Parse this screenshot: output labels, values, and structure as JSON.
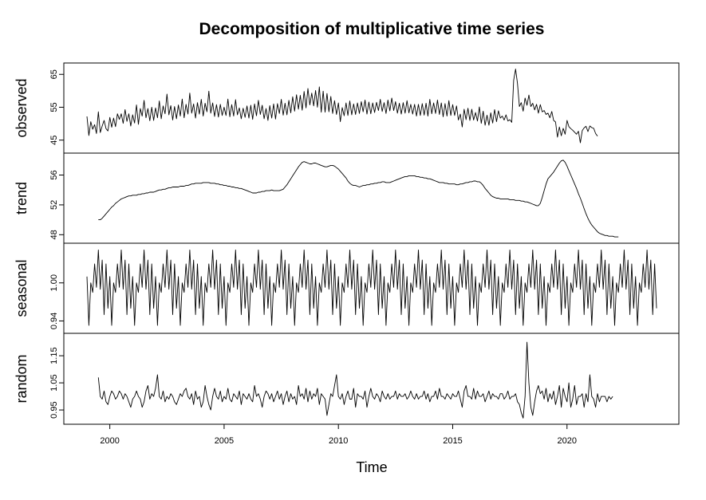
{
  "chart_data": {
    "type": "line",
    "title": "Decomposition of multiplicative time series",
    "xlabel": "Time",
    "x_range": [
      1999.0,
      2023.917
    ],
    "x_ticks": [
      2000,
      2005,
      2010,
      2015,
      2020
    ],
    "frequency": 12,
    "panels": [
      {
        "name": "observed",
        "ylabel": "observed",
        "ylim": [
          42.5,
          67.0
        ],
        "y_ticks": [
          45,
          55,
          65
        ],
        "start": 1999.0,
        "values": [
          52.2,
          46.4,
          50.6,
          48.3,
          49.7,
          47.0,
          53.6,
          47.3,
          49.3,
          51.0,
          48.5,
          47.8,
          51.9,
          48.9,
          51.7,
          49.1,
          53.0,
          51.3,
          53.0,
          50.1,
          54.3,
          50.7,
          53.0,
          49.3,
          52.7,
          50.2,
          55.7,
          49.8,
          54.6,
          52.3,
          57.1,
          51.8,
          54.6,
          50.9,
          55.0,
          51.0,
          54.8,
          51.8,
          56.9,
          51.5,
          55.4,
          53.0,
          59.0,
          52.7,
          55.5,
          51.1,
          55.2,
          51.5,
          55.7,
          52.3,
          57.5,
          51.8,
          55.9,
          52.9,
          59.3,
          53.2,
          56.0,
          51.7,
          56.4,
          52.9,
          57.4,
          52.3,
          56.2,
          53.6,
          59.9,
          53.2,
          56.3,
          52.2,
          55.8,
          52.0,
          55.9,
          52.5,
          55.0,
          52.5,
          57.5,
          52.1,
          55.8,
          52.3,
          57.3,
          52.7,
          54.8,
          51.5,
          54.7,
          51.9,
          55.4,
          51.7,
          55.6,
          51.3,
          56.0,
          52.4,
          57.1,
          52.8,
          55.6,
          51.5,
          54.6,
          51.0,
          55.5,
          51.7,
          56.0,
          51.4,
          56.1,
          53.1,
          57.4,
          52.6,
          56.2,
          52.7,
          57.1,
          53.3,
          58.2,
          53.8,
          58.8,
          54.4,
          58.6,
          54.1,
          59.8,
          54.8,
          60.7,
          55.7,
          59.3,
          55.4,
          60.1,
          55.0,
          61.2,
          53.5,
          59.9,
          53.5,
          59.2,
          53.6,
          58.3,
          53.1,
          57.0,
          52.8,
          56.3,
          50.6,
          54.9,
          52.4,
          56.3,
          52.5,
          56.9,
          52.7,
          56.0,
          52.8,
          56.3,
          53.1,
          56.7,
          53.6,
          57.2,
          52.9,
          56.6,
          53.0,
          56.3,
          53.4,
          56.5,
          54.0,
          57.4,
          53.7,
          56.4,
          53.1,
          57.2,
          53.9,
          57.8,
          54.0,
          56.7,
          53.2,
          56.2,
          52.9,
          56.4,
          53.2,
          57.0,
          53.3,
          55.9,
          52.9,
          55.9,
          52.3,
          55.9,
          52.5,
          56.1,
          52.6,
          56.2,
          52.3,
          57.4,
          53.0,
          56.3,
          53.1,
          57.2,
          52.8,
          56.3,
          52.1,
          56.1,
          52.3,
          57.0,
          52.5,
          55.8,
          52.5,
          55.4,
          51.1,
          52.9,
          49.0,
          54.4,
          51.2,
          54.7,
          51.0,
          54.4,
          51.1,
          53.4,
          50.8,
          55.1,
          50.1,
          53.8,
          49.5,
          52.6,
          49.5,
          53.3,
          50.2,
          54.3,
          50.6,
          53.9,
          51.7,
          52.3,
          51.1,
          52.7,
          50.8,
          51.2,
          50.4,
          63.2,
          66.6,
          62.2,
          55.2,
          56.4,
          53.8,
          57.8,
          55.6,
          58.7,
          55.2,
          56.2,
          54.2,
          55.9,
          53.2,
          55.8,
          53.6,
          54.0,
          52.8,
          53.2,
          51.8,
          53.7,
          51.0,
          50.5,
          45.9,
          49.0,
          46.3,
          48.6,
          46.8,
          51.0,
          49.1,
          48.5,
          48.0,
          47.4,
          46.8,
          47.7,
          44.2,
          47.9,
          48.7,
          49.2,
          47.6,
          49.3,
          48.8,
          48.6,
          47.0,
          46.2
        ]
      },
      {
        "name": "trend",
        "ylabel": "trend",
        "ylim": [
          47.5,
          58.3
        ],
        "y_ticks": [
          48,
          52,
          56
        ],
        "start": 1999.5,
        "values": [
          50.0,
          50.0,
          50.2,
          50.5,
          50.8,
          51.1,
          51.4,
          51.7,
          51.9,
          52.2,
          52.4,
          52.6,
          52.8,
          52.9,
          53.0,
          53.1,
          53.2,
          53.2,
          53.3,
          53.3,
          53.3,
          53.4,
          53.4,
          53.5,
          53.5,
          53.6,
          53.6,
          53.7,
          53.7,
          53.7,
          53.8,
          53.9,
          54.0,
          54.0,
          54.1,
          54.1,
          54.2,
          54.3,
          54.3,
          54.4,
          54.4,
          54.4,
          54.4,
          54.5,
          54.5,
          54.5,
          54.6,
          54.6,
          54.7,
          54.8,
          54.8,
          54.9,
          54.9,
          54.9,
          54.9,
          55.0,
          55.0,
          55.0,
          55.0,
          54.9,
          54.9,
          54.9,
          54.8,
          54.8,
          54.7,
          54.7,
          54.6,
          54.6,
          54.5,
          54.5,
          54.4,
          54.4,
          54.3,
          54.3,
          54.2,
          54.2,
          54.1,
          54.0,
          53.9,
          53.8,
          53.7,
          53.6,
          53.6,
          53.6,
          53.7,
          53.7,
          53.8,
          53.8,
          53.9,
          53.9,
          53.9,
          54.0,
          53.9,
          53.9,
          53.9,
          53.9,
          54.0,
          54.1,
          54.4,
          54.7,
          55.1,
          55.5,
          55.9,
          56.3,
          56.7,
          57.1,
          57.4,
          57.7,
          57.8,
          57.7,
          57.6,
          57.5,
          57.5,
          57.6,
          57.6,
          57.5,
          57.4,
          57.3,
          57.2,
          57.1,
          57.1,
          57.2,
          57.3,
          57.3,
          57.2,
          57.0,
          56.8,
          56.5,
          56.2,
          55.9,
          55.6,
          55.2,
          54.9,
          54.7,
          54.6,
          54.6,
          54.5,
          54.4,
          54.5,
          54.6,
          54.6,
          54.7,
          54.7,
          54.8,
          54.8,
          54.9,
          54.9,
          55.0,
          55.0,
          55.1,
          55.1,
          55.0,
          55.0,
          55.0,
          55.1,
          55.2,
          55.3,
          55.4,
          55.5,
          55.6,
          55.7,
          55.8,
          55.8,
          55.9,
          55.9,
          55.9,
          55.9,
          55.8,
          55.8,
          55.7,
          55.7,
          55.6,
          55.6,
          55.5,
          55.5,
          55.4,
          55.3,
          55.2,
          55.1,
          55.0,
          55.0,
          55.0,
          54.9,
          54.9,
          54.8,
          54.8,
          54.8,
          54.8,
          54.7,
          54.7,
          54.8,
          54.8,
          54.9,
          55.0,
          55.0,
          55.1,
          55.1,
          55.2,
          55.2,
          55.1,
          55.1,
          54.9,
          54.6,
          54.2,
          53.9,
          53.6,
          53.3,
          53.1,
          53.0,
          52.9,
          52.9,
          52.8,
          52.8,
          52.8,
          52.8,
          52.8,
          52.7,
          52.7,
          52.7,
          52.6,
          52.6,
          52.6,
          52.5,
          52.5,
          52.4,
          52.4,
          52.3,
          52.2,
          52.1,
          52.0,
          51.9,
          51.9,
          52.2,
          53.0,
          53.9,
          54.8,
          55.5,
          55.8,
          56.1,
          56.4,
          56.8,
          57.2,
          57.6,
          57.9,
          58.0,
          57.7,
          57.2,
          56.6,
          56.0,
          55.4,
          54.8,
          54.2,
          53.5,
          52.9,
          52.2,
          51.5,
          50.8,
          50.2,
          49.7,
          49.3,
          49.0,
          48.7,
          48.4,
          48.2,
          48.1,
          48.0,
          47.9,
          47.9,
          47.8,
          47.8,
          47.8,
          47.7,
          47.7,
          47.7
        ]
      },
      {
        "name": "seasonal",
        "ylabel": "seasonal",
        "ylim": [
          0.928,
          1.055
        ],
        "y_ticks": [
          0.94,
          1.0
        ],
        "start": 1999.0,
        "pattern": [
          1.01,
          0.933,
          1.0,
          0.985,
          1.03,
          0.993,
          1.052,
          0.99,
          1.036,
          0.95,
          1.03,
          0.96
        ],
        "cycles": 25
      },
      {
        "name": "random",
        "ylabel": "random",
        "ylim": [
          0.915,
          1.215
        ],
        "y_ticks": [
          0.95,
          1.05,
          1.15
        ],
        "start": 1999.5,
        "values": [
          1.07,
          1.0,
          0.99,
          1.02,
          0.98,
          0.97,
          1.0,
          1.02,
          1.01,
          0.99,
          1.0,
          1.02,
          1.01,
          0.99,
          1.01,
          1.0,
          0.98,
          0.96,
          0.99,
          1.0,
          1.02,
          1.0,
          0.99,
          0.96,
          0.98,
          1.02,
          1.04,
          0.99,
          1.01,
          1.0,
          1.03,
          1.08,
          1.0,
          0.99,
          1.02,
          0.98,
          1.0,
          0.99,
          1.01,
          1.0,
          0.98,
          0.97,
          0.99,
          1.01,
          1.0,
          1.02,
          1.03,
          1.0,
          0.99,
          1.01,
          0.97,
          1.02,
          0.99,
          1.0,
          0.96,
          0.98,
          1.04,
          1.0,
          0.97,
          0.95,
          1.0,
          1.03,
          1.0,
          0.99,
          1.02,
          0.98,
          1.0,
          0.99,
          1.03,
          0.99,
          0.98,
          1.01,
          1.0,
          0.99,
          1.02,
          0.97,
          1.01,
          1.0,
          0.99,
          1.01,
          0.99,
          0.98,
          1.04,
          1.0,
          1.01,
          0.99,
          0.96,
          1.0,
          1.02,
          1.01,
          0.99,
          1.01,
          0.98,
          1.0,
          1.02,
          0.99,
          1.01,
          0.97,
          1.0,
          1.02,
          0.98,
          1.01,
          0.99,
          1.0,
          0.97,
          1.04,
          1.0,
          1.01,
          0.99,
          1.03,
          0.98,
          1.02,
          0.99,
          1.01,
          1.0,
          1.03,
          0.97,
          1.01,
          1.0,
          0.99,
          0.93,
          0.97,
          1.01,
          1.0,
          1.04,
          1.08,
          1.0,
          0.99,
          1.01,
          0.97,
          1.0,
          1.02,
          0.99,
          0.99,
          1.03,
          0.96,
          1.01,
          1.0,
          1.0,
          0.99,
          1.02,
          0.96,
          1.0,
          1.03,
          1.0,
          0.99,
          1.01,
          1.0,
          0.98,
          1.02,
          1.0,
          0.99,
          1.01,
          0.99,
          1.0,
          1.0,
          1.02,
          0.99,
          1.01,
          1.0,
          1.0,
          1.01,
          0.99,
          1.0,
          1.02,
          1.0,
          0.99,
          1.01,
          0.99,
          1.0,
          1.0,
          1.02,
          0.99,
          1.01,
          0.98,
          1.0,
          1.0,
          1.02,
          0.99,
          1.03,
          1.0,
          1.0,
          0.99,
          1.01,
          1.0,
          0.99,
          1.01,
          1.0,
          1.0,
          1.02,
          0.99,
          0.96,
          1.02,
          1.04,
          1.0,
          1.0,
          0.99,
          1.03,
          0.99,
          1.02,
          1.0,
          1.0,
          1.01,
          0.98,
          1.0,
          1.02,
          0.99,
          1.01,
          1.0,
          1.0,
          0.99,
          1.01,
          1.01,
          0.99,
          1.0,
          1.02,
          0.99,
          1.0,
          1.0,
          1.01,
          0.98,
          0.97,
          0.94,
          0.92,
          1.0,
          1.2,
          1.05,
          0.96,
          0.93,
          0.98,
          1.02,
          1.04,
          1.01,
          1.02,
          0.99,
          1.03,
          0.98,
          1.01,
          0.99,
          1.02,
          0.97,
          1.0,
          1.04,
          0.96,
          1.03,
          1.0,
          0.98,
          1.05,
          0.96,
          0.99,
          1.04,
          0.97,
          1.0,
          1.0,
          1.01,
          0.96,
          1.01,
          0.98,
          1.08,
          1.0,
          0.99,
          0.96,
          1.01,
          0.98,
          1.0,
          1.0,
          1.0,
          0.98,
          1.0,
          0.99,
          1.0
        ]
      }
    ]
  }
}
